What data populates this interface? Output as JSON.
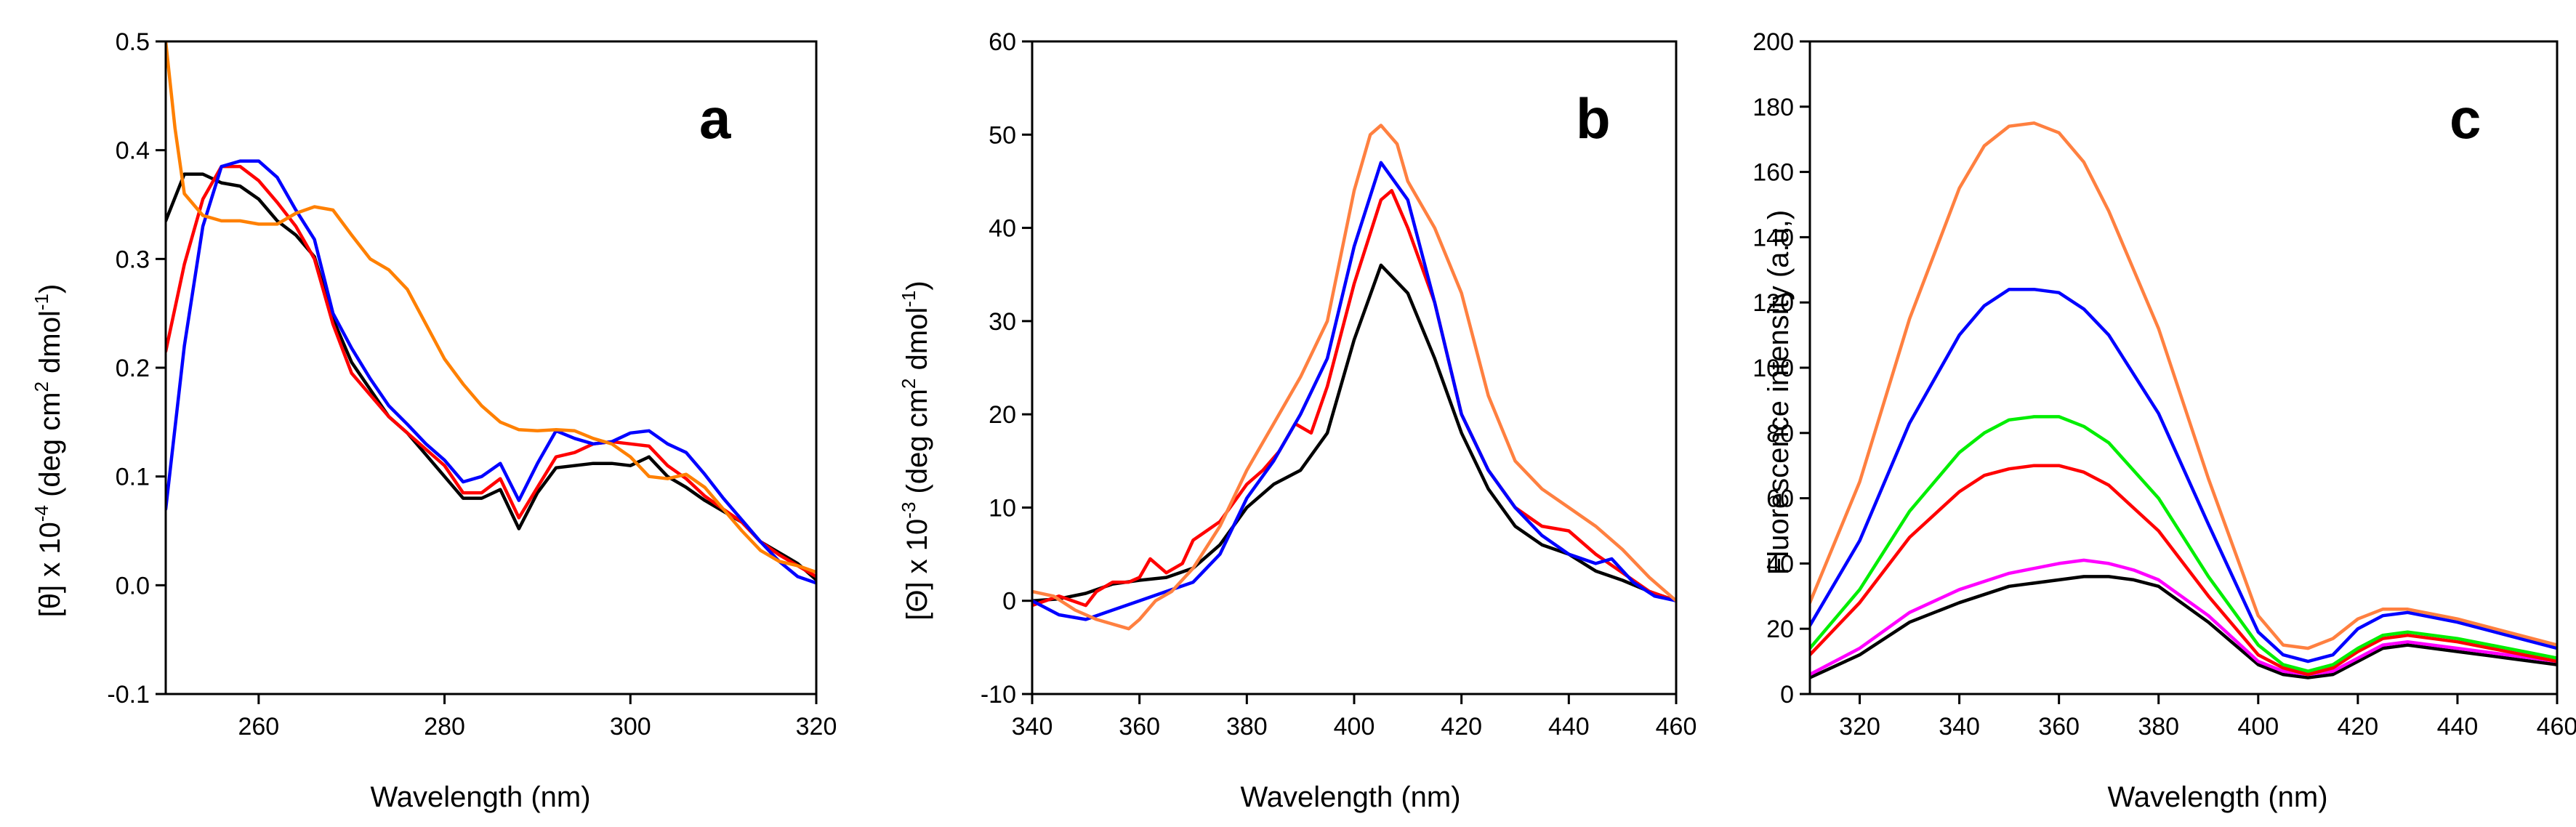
{
  "chart_data": [
    {
      "type": "line",
      "panel_label": "a",
      "title": "",
      "xlabel": "Wavelength (nm)",
      "ylabel_main": "[θ] x 10",
      "ylabel_sup1": "-4",
      "ylabel_mid": " (deg cm",
      "ylabel_sup2": "2",
      "ylabel_tail": " dmol",
      "ylabel_sup3": "-1",
      "ylabel_end": ")",
      "xlim": [
        250,
        320
      ],
      "ylim": [
        -0.1,
        0.5
      ],
      "xticks": [
        260,
        280,
        300,
        320
      ],
      "xtick_labels": [
        "260",
        "280",
        "300",
        "320"
      ],
      "yticks": [
        -0.1,
        0.0,
        0.1,
        0.2,
        0.3,
        0.4,
        0.5
      ],
      "ytick_labels": [
        "-0.1",
        "0.0",
        "0.1",
        "0.2",
        "0.3",
        "0.4",
        "0.5"
      ],
      "series": [
        {
          "name": "black",
          "color": "#000000",
          "x": [
            250,
            252,
            254,
            256,
            258,
            260,
            262,
            264,
            266,
            268,
            270,
            272,
            274,
            276,
            278,
            280,
            282,
            284,
            286,
            288,
            290,
            292,
            294,
            296,
            298,
            300,
            302,
            304,
            306,
            308,
            310,
            312,
            314,
            316,
            318,
            320
          ],
          "y": [
            0.335,
            0.378,
            0.378,
            0.37,
            0.367,
            0.355,
            0.335,
            0.322,
            0.302,
            0.245,
            0.205,
            0.18,
            0.155,
            0.14,
            0.12,
            0.1,
            0.08,
            0.08,
            0.088,
            0.052,
            0.085,
            0.108,
            0.11,
            0.112,
            0.112,
            0.11,
            0.118,
            0.1,
            0.09,
            0.078,
            0.068,
            0.058,
            0.04,
            0.03,
            0.02,
            0.005
          ]
        },
        {
          "name": "red",
          "color": "#ff0000",
          "x": [
            250,
            252,
            254,
            256,
            258,
            260,
            262,
            264,
            266,
            268,
            270,
            272,
            274,
            276,
            278,
            280,
            282,
            284,
            286,
            288,
            290,
            292,
            294,
            296,
            298,
            300,
            302,
            304,
            306,
            308,
            310,
            312,
            314,
            316,
            318,
            320
          ],
          "y": [
            0.215,
            0.295,
            0.355,
            0.385,
            0.385,
            0.372,
            0.352,
            0.33,
            0.3,
            0.24,
            0.195,
            0.175,
            0.155,
            0.14,
            0.125,
            0.11,
            0.085,
            0.085,
            0.098,
            0.062,
            0.09,
            0.118,
            0.122,
            0.13,
            0.132,
            0.13,
            0.128,
            0.11,
            0.098,
            0.082,
            0.07,
            0.058,
            0.04,
            0.028,
            0.018,
            0.008
          ]
        },
        {
          "name": "blue",
          "color": "#0000ff",
          "x": [
            250,
            252,
            254,
            256,
            258,
            260,
            262,
            264,
            266,
            268,
            270,
            272,
            274,
            276,
            278,
            280,
            282,
            284,
            286,
            288,
            290,
            292,
            294,
            296,
            298,
            300,
            302,
            304,
            306,
            308,
            310,
            312,
            314,
            316,
            318,
            320
          ],
          "y": [
            0.07,
            0.22,
            0.33,
            0.385,
            0.39,
            0.39,
            0.375,
            0.345,
            0.318,
            0.25,
            0.218,
            0.19,
            0.165,
            0.148,
            0.13,
            0.115,
            0.095,
            0.1,
            0.112,
            0.078,
            0.112,
            0.142,
            0.135,
            0.13,
            0.132,
            0.14,
            0.142,
            0.13,
            0.122,
            0.102,
            0.08,
            0.06,
            0.04,
            0.022,
            0.008,
            0.002
          ]
        },
        {
          "name": "orange",
          "color": "#ff8000",
          "x": [
            250,
            251,
            252,
            254,
            256,
            258,
            260,
            262,
            264,
            266,
            268,
            270,
            272,
            274,
            276,
            278,
            280,
            282,
            284,
            286,
            288,
            290,
            292,
            294,
            296,
            298,
            300,
            302,
            304,
            306,
            308,
            310,
            312,
            314,
            316,
            318,
            320
          ],
          "y": [
            0.5,
            0.42,
            0.36,
            0.34,
            0.335,
            0.335,
            0.332,
            0.332,
            0.342,
            0.348,
            0.345,
            0.322,
            0.3,
            0.29,
            0.272,
            0.24,
            0.208,
            0.185,
            0.165,
            0.15,
            0.143,
            0.142,
            0.143,
            0.142,
            0.135,
            0.13,
            0.118,
            0.1,
            0.098,
            0.102,
            0.09,
            0.07,
            0.05,
            0.032,
            0.022,
            0.018,
            0.012
          ]
        }
      ]
    },
    {
      "type": "line",
      "panel_label": "b",
      "title": "",
      "xlabel": "Wavelength (nm)",
      "ylabel_main": "[Θ] x 10",
      "ylabel_sup1": "-3",
      "ylabel_mid": " (deg cm",
      "ylabel_sup2": "2",
      "ylabel_tail": " dmol",
      "ylabel_sup3": "-1",
      "ylabel_end": ")",
      "xlim": [
        340,
        460
      ],
      "ylim": [
        -10,
        60
      ],
      "xticks": [
        340,
        360,
        380,
        400,
        420,
        440,
        460
      ],
      "xtick_labels": [
        "340",
        "360",
        "380",
        "400",
        "420",
        "440",
        "460"
      ],
      "yticks": [
        -10,
        0,
        10,
        20,
        30,
        40,
        50,
        60
      ],
      "ytick_labels": [
        "-10",
        "0",
        "10",
        "20",
        "30",
        "40",
        "50",
        "60"
      ],
      "series": [
        {
          "name": "black",
          "color": "#000000",
          "x": [
            340,
            345,
            350,
            355,
            360,
            365,
            370,
            375,
            380,
            385,
            390,
            395,
            400,
            405,
            410,
            415,
            420,
            425,
            430,
            435,
            440,
            445,
            450,
            455,
            460
          ],
          "y": [
            0,
            0.2,
            0.8,
            1.8,
            2.2,
            2.5,
            3.5,
            6,
            10,
            12.5,
            14,
            18,
            28,
            36,
            33,
            26,
            18,
            12,
            8,
            6,
            5,
            3.2,
            2.2,
            1,
            0
          ]
        },
        {
          "name": "red",
          "color": "#ff0000",
          "x": [
            340,
            345,
            350,
            352,
            355,
            358,
            360,
            362,
            365,
            368,
            370,
            375,
            380,
            383,
            386,
            389,
            392,
            395,
            400,
            405,
            407,
            410,
            415,
            420,
            425,
            430,
            435,
            440,
            445,
            450,
            455,
            460
          ],
          "y": [
            -0.5,
            0.5,
            -0.5,
            1,
            2,
            2,
            2.5,
            4.5,
            3,
            4,
            6.5,
            8.5,
            12.5,
            14,
            16,
            19,
            18,
            23,
            34,
            43,
            44,
            40,
            32,
            20,
            14,
            10,
            8,
            7.5,
            5,
            3,
            1,
            0
          ]
        },
        {
          "name": "blue",
          "color": "#0000ff",
          "x": [
            340,
            345,
            350,
            355,
            360,
            365,
            370,
            375,
            380,
            385,
            390,
            395,
            400,
            405,
            410,
            415,
            420,
            425,
            430,
            435,
            440,
            445,
            448,
            452,
            456,
            460
          ],
          "y": [
            0,
            -1.5,
            -2,
            -1,
            0,
            1,
            2,
            5,
            11,
            15,
            20,
            26,
            38,
            47,
            43,
            32,
            20,
            14,
            10,
            7,
            5,
            4,
            4.5,
            2,
            0.5,
            0
          ]
        },
        {
          "name": "orange",
          "color": "#ff8040",
          "x": [
            340,
            344,
            348,
            352,
            355,
            358,
            360,
            363,
            366,
            370,
            375,
            380,
            385,
            390,
            395,
            400,
            403,
            405,
            408,
            410,
            415,
            420,
            425,
            430,
            435,
            440,
            445,
            450,
            455,
            460
          ],
          "y": [
            1,
            0.5,
            -1,
            -2,
            -2.5,
            -3,
            -2,
            0,
            1,
            3.5,
            8,
            14,
            19,
            24,
            30,
            44,
            50,
            51,
            49,
            45,
            40,
            33,
            22,
            15,
            12,
            10,
            8,
            5.5,
            2.5,
            0
          ]
        }
      ]
    },
    {
      "type": "line",
      "panel_label": "c",
      "title": "",
      "xlabel": "Wavelength (nm)",
      "ylabel": "Fluorescence intensity (a.u,)",
      "xlim": [
        310,
        460
      ],
      "ylim": [
        0,
        200
      ],
      "xticks": [
        320,
        340,
        360,
        380,
        400,
        420,
        440,
        460
      ],
      "xtick_labels": [
        "320",
        "340",
        "360",
        "380",
        "400",
        "420",
        "440",
        "460"
      ],
      "yticks": [
        0,
        20,
        40,
        60,
        80,
        100,
        120,
        140,
        160,
        180,
        200
      ],
      "ytick_labels": [
        "0",
        "20",
        "40",
        "60",
        "80",
        "100",
        "120",
        "140",
        "160",
        "180",
        "200"
      ],
      "series": [
        {
          "name": "black",
          "color": "#000000",
          "x": [
            310,
            320,
            330,
            340,
            350,
            360,
            365,
            370,
            375,
            380,
            390,
            400,
            405,
            410,
            415,
            420,
            425,
            430,
            440,
            450,
            460
          ],
          "y": [
            5,
            12,
            22,
            28,
            33,
            35,
            36,
            36,
            35,
            33,
            22,
            9,
            6,
            5,
            6,
            10,
            14,
            15,
            13,
            11,
            9
          ]
        },
        {
          "name": "magenta",
          "color": "#ff00ff",
          "x": [
            310,
            320,
            330,
            340,
            350,
            360,
            365,
            370,
            375,
            380,
            390,
            400,
            405,
            410,
            415,
            420,
            425,
            430,
            440,
            450,
            460
          ],
          "y": [
            6,
            14,
            25,
            32,
            37,
            40,
            41,
            40,
            38,
            35,
            24,
            10,
            7,
            6,
            7,
            11,
            15,
            16,
            14,
            12,
            10
          ]
        },
        {
          "name": "red",
          "color": "#ff0000",
          "x": [
            310,
            320,
            330,
            340,
            345,
            350,
            355,
            360,
            365,
            370,
            380,
            390,
            400,
            405,
            410,
            415,
            420,
            425,
            430,
            440,
            450,
            460
          ],
          "y": [
            12,
            28,
            48,
            62,
            67,
            69,
            70,
            70,
            68,
            64,
            50,
            30,
            12,
            8,
            6,
            8,
            13,
            17,
            18,
            16,
            13,
            10
          ]
        },
        {
          "name": "green",
          "color": "#00ee00",
          "x": [
            310,
            320,
            330,
            340,
            345,
            350,
            355,
            360,
            365,
            370,
            380,
            390,
            400,
            405,
            410,
            415,
            420,
            425,
            430,
            440,
            450,
            460
          ],
          "y": [
            14,
            32,
            56,
            74,
            80,
            84,
            85,
            85,
            82,
            77,
            60,
            36,
            15,
            9,
            7,
            9,
            14,
            18,
            19,
            17,
            14,
            11
          ]
        },
        {
          "name": "blue",
          "color": "#0000ff",
          "x": [
            310,
            320,
            330,
            340,
            345,
            350,
            355,
            360,
            365,
            370,
            380,
            390,
            400,
            405,
            410,
            415,
            420,
            425,
            430,
            440,
            450,
            460
          ],
          "y": [
            21,
            47,
            83,
            110,
            119,
            124,
            124,
            123,
            118,
            110,
            86,
            52,
            19,
            12,
            10,
            12,
            20,
            24,
            25,
            22,
            18,
            14
          ]
        },
        {
          "name": "orange",
          "color": "#ff8040",
          "x": [
            310,
            320,
            330,
            340,
            345,
            350,
            355,
            360,
            365,
            370,
            380,
            390,
            400,
            405,
            410,
            415,
            420,
            425,
            430,
            440,
            450,
            460
          ],
          "y": [
            28,
            65,
            115,
            155,
            168,
            174,
            175,
            172,
            163,
            148,
            112,
            66,
            24,
            15,
            14,
            17,
            23,
            26,
            26,
            23,
            19,
            15
          ]
        }
      ]
    }
  ]
}
